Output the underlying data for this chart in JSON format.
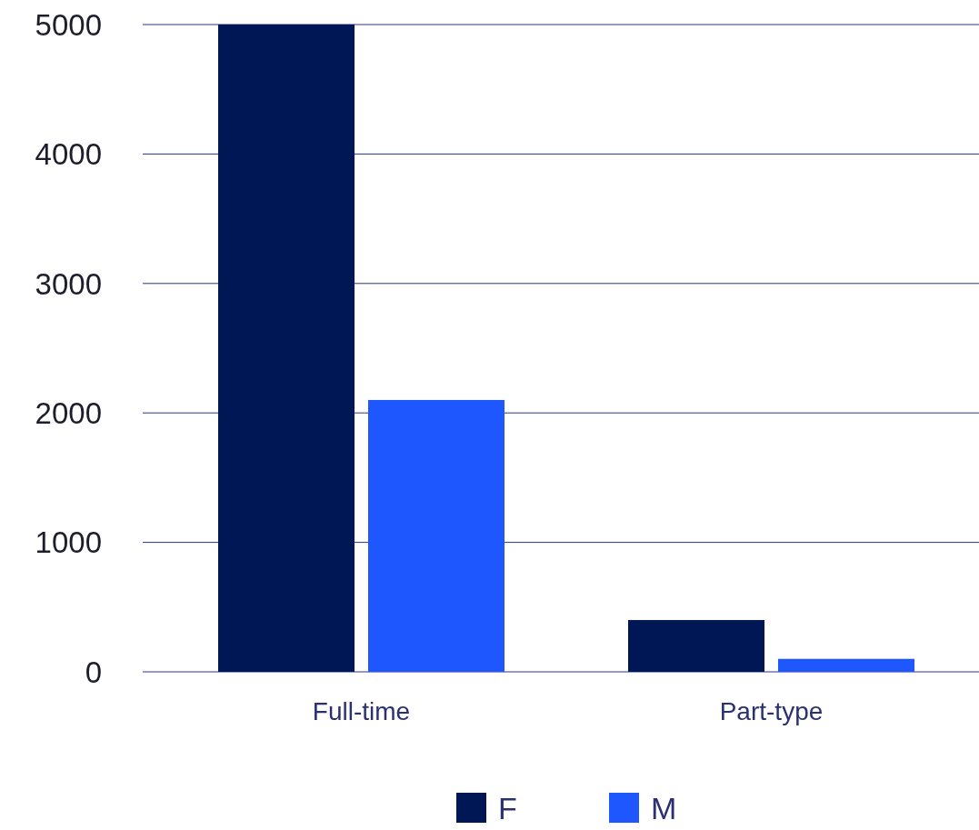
{
  "chart_data": {
    "type": "bar",
    "categories": [
      "Full-time",
      "Part-type"
    ],
    "series": [
      {
        "name": "F",
        "color": "#001755",
        "values": [
          5000,
          400
        ]
      },
      {
        "name": "M",
        "color": "#1f57ff",
        "values": [
          2100,
          100
        ]
      }
    ],
    "ylim": [
      0,
      5000
    ],
    "yticks": [
      0,
      1000,
      2000,
      3000,
      4000,
      5000
    ],
    "grid": "y",
    "legend": "bottom"
  }
}
